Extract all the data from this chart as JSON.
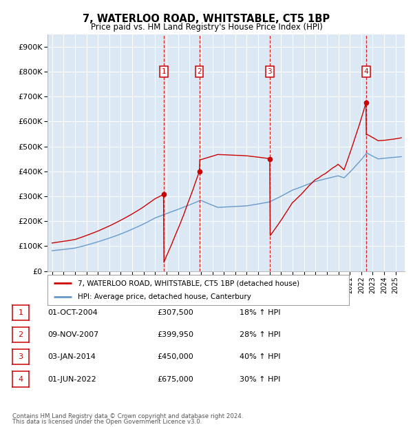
{
  "title": "7, WATERLOO ROAD, WHITSTABLE, CT5 1BP",
  "subtitle": "Price paid vs. HM Land Registry's House Price Index (HPI)",
  "ylim": [
    0,
    950000
  ],
  "yticks": [
    0,
    100000,
    200000,
    300000,
    400000,
    500000,
    600000,
    700000,
    800000,
    900000
  ],
  "ytick_labels": [
    "£0",
    "£100K",
    "£200K",
    "£300K",
    "£400K",
    "£500K",
    "£600K",
    "£700K",
    "£800K",
    "£900K"
  ],
  "red_color": "#cc0000",
  "blue_color": "#6699cc",
  "sale_dates": [
    2004.75,
    2007.86,
    2014.01,
    2022.42
  ],
  "sale_prices": [
    307500,
    399950,
    450000,
    675000
  ],
  "sale_labels": [
    "1",
    "2",
    "3",
    "4"
  ],
  "legend_entries": [
    {
      "label": "7, WATERLOO ROAD, WHITSTABLE, CT5 1BP (detached house)",
      "color": "#cc0000"
    },
    {
      "label": "HPI: Average price, detached house, Canterbury",
      "color": "#6699cc"
    }
  ],
  "table_rows": [
    {
      "num": "1",
      "date": "01-OCT-2004",
      "price": "£307,500",
      "change": "18% ↑ HPI"
    },
    {
      "num": "2",
      "date": "09-NOV-2007",
      "price": "£399,950",
      "change": "28% ↑ HPI"
    },
    {
      "num": "3",
      "date": "03-JAN-2014",
      "price": "£450,000",
      "change": "40% ↑ HPI"
    },
    {
      "num": "4",
      "date": "01-JUN-2022",
      "price": "£675,000",
      "change": "30% ↑ HPI"
    }
  ],
  "footnote1": "Contains HM Land Registry data © Crown copyright and database right 2024.",
  "footnote2": "This data is licensed under the Open Government Licence v3.0.",
  "bg_color": "#dce9f5",
  "xlim_left": 1994.6,
  "xlim_right": 2025.8,
  "hpi_base": 82000,
  "red_base": 95000
}
